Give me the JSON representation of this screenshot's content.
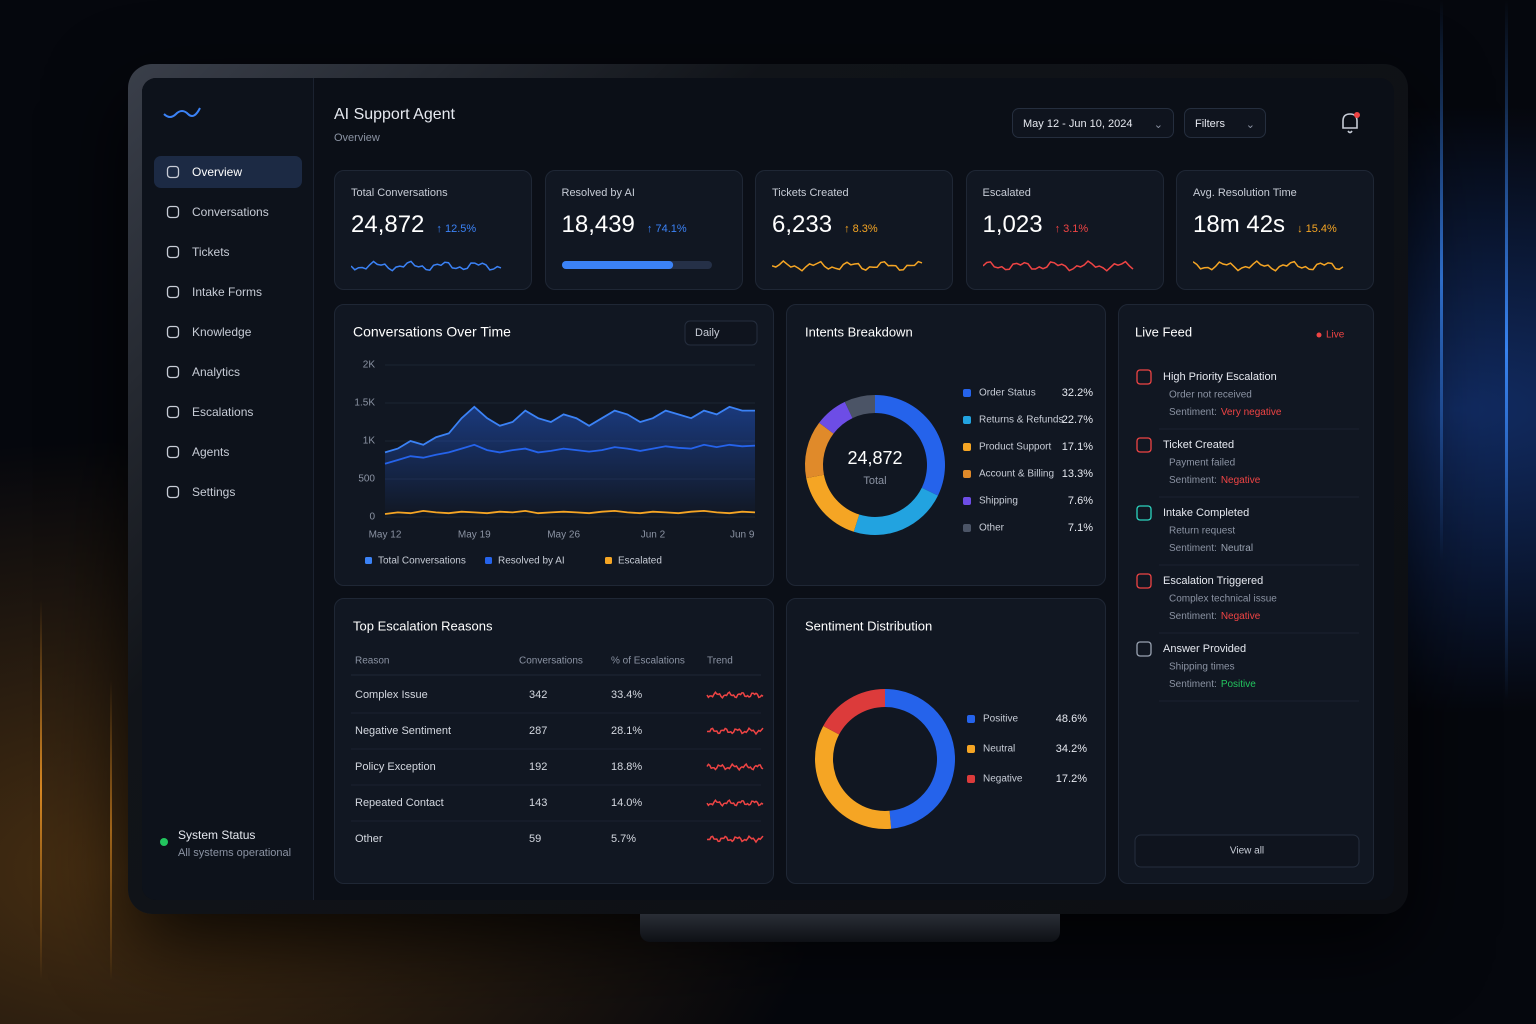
{
  "header": {
    "title": "AI Support Agent",
    "subtitle": "Overview",
    "date_range": "May 12 - Jun 10, 2024",
    "filters": "Filters"
  },
  "nav": [
    "Overview",
    "Conversations",
    "Tickets",
    "Intake Forms",
    "Knowledge",
    "Analytics",
    "Escalations",
    "Agents",
    "Settings"
  ],
  "system_status": {
    "title": "System Status",
    "detail": "All systems operational"
  },
  "kpis": [
    {
      "label": "Total Conversations",
      "value": "24,872",
      "delta": "↑ 12.5%",
      "color": "#3b82f6"
    },
    {
      "label": "Resolved by AI",
      "value": "18,439",
      "delta": "↑ 74.1%",
      "color": "#3b82f6",
      "progress": 74.1
    },
    {
      "label": "Tickets Created",
      "value": "6,233",
      "delta": "↑ 8.3%",
      "color": "#f5a524"
    },
    {
      "label": "Escalated",
      "value": "1,023",
      "delta": "↑ 3.1%",
      "color": "#ef4444"
    },
    {
      "label": "Avg. Resolution Time",
      "value": "18m 42s",
      "delta": "↓ 15.4%",
      "color": "#f5a524"
    }
  ],
  "chart_data": [
    {
      "type": "line",
      "title": "Conversations Over Time",
      "control": "Daily",
      "categories": [
        "May 12",
        null,
        null,
        null,
        null,
        null,
        null,
        "May 19",
        null,
        null,
        null,
        null,
        null,
        null,
        "May 26",
        null,
        null,
        null,
        null,
        null,
        null,
        "Jun 2",
        null,
        null,
        null,
        null,
        null,
        null,
        "Jun 9",
        null
      ],
      "series": [
        {
          "name": "Total Conversations",
          "color": "#3b82f6",
          "values": [
            850,
            900,
            1000,
            950,
            1050,
            1100,
            1300,
            1450,
            1300,
            1200,
            1250,
            1400,
            1300,
            1250,
            1350,
            1300,
            1200,
            1300,
            1400,
            1350,
            1250,
            1300,
            1400,
            1350,
            1300,
            1400,
            1350,
            1450,
            1400,
            1400
          ]
        },
        {
          "name": "Resolved by AI",
          "color": "#2563eb",
          "values": [
            700,
            750,
            800,
            780,
            820,
            850,
            900,
            950,
            880,
            850,
            880,
            900,
            850,
            870,
            900,
            880,
            860,
            880,
            920,
            900,
            870,
            900,
            930,
            910,
            900,
            950,
            920,
            950,
            930,
            940
          ]
        },
        {
          "name": "Escalated",
          "color": "#f5a524",
          "values": [
            40,
            60,
            50,
            80,
            60,
            50,
            70,
            60,
            50,
            70,
            60,
            80,
            50,
            60,
            70,
            60,
            50,
            70,
            80,
            60,
            50,
            70,
            60,
            50,
            70,
            80,
            60,
            50,
            70,
            60
          ]
        }
      ],
      "ylim": [
        0,
        2000
      ],
      "yticks": [
        0,
        500,
        {
          "value": 1000,
          "label": "1K"
        },
        {
          "value": 1500,
          "label": "1.5K"
        },
        {
          "value": 2000,
          "label": "2K"
        }
      ],
      "grid": true
    },
    {
      "type": "pie",
      "title": "Intents Breakdown",
      "center_value": "24,872",
      "center_label": "Total",
      "categories": [
        "Order Status",
        "Returns & Refunds",
        "Product Support",
        "Account & Billing",
        "Shipping",
        "Other"
      ],
      "values": [
        32.2,
        22.7,
        17.1,
        13.3,
        7.6,
        7.1
      ],
      "value_labels": [
        "32.2%",
        "22.7%",
        "17.1%",
        "13.3%",
        "7.6%",
        "7.1%"
      ],
      "colors": [
        "#2563eb",
        "#22a3e0",
        "#f5a524",
        "#e08a2a",
        "#6d4de6",
        "#4b5466"
      ]
    },
    {
      "type": "pie",
      "title": "Sentiment Distribution",
      "categories": [
        "Positive",
        "Neutral",
        "Negative"
      ],
      "values": [
        48.6,
        34.2,
        17.2
      ],
      "value_labels": [
        "48.6%",
        "34.2%",
        "17.2%"
      ],
      "colors": [
        "#2563eb",
        "#f5a524",
        "#dc3b3b"
      ]
    }
  ],
  "table": {
    "title": "Top Escalation Reasons",
    "columns": [
      "Reason",
      "Conversations",
      "% of Escalations",
      "Trend"
    ],
    "rows": [
      [
        "Complex Issue",
        342,
        "33.4%"
      ],
      [
        "Negative Sentiment",
        287,
        "28.1%"
      ],
      [
        "Policy Exception",
        192,
        "18.8%"
      ],
      [
        "Repeated Contact",
        143,
        "14.0%"
      ],
      [
        "Other",
        59,
        "5.7%"
      ]
    ]
  },
  "live_feed": {
    "title": "Live Feed",
    "badge": "Live",
    "sentiment_label": "Sentiment:",
    "view_all": "View all",
    "items": [
      {
        "title": "High Priority Escalation",
        "detail": "Order not received",
        "sentiment": "Very negative",
        "color": "#ef4444"
      },
      {
        "title": "Ticket Created",
        "detail": "Payment failed",
        "sentiment": "Negative",
        "color": "#ef4444"
      },
      {
        "title": "Intake Completed",
        "detail": "Return request",
        "sentiment": "Neutral",
        "color": "#9aa3b2"
      },
      {
        "title": "Escalation Triggered",
        "detail": "Complex technical issue",
        "sentiment": "Negative",
        "color": "#ef4444"
      },
      {
        "title": "Answer Provided",
        "detail": "Shipping times",
        "sentiment": "Positive",
        "color": "#22c55e"
      }
    ]
  }
}
